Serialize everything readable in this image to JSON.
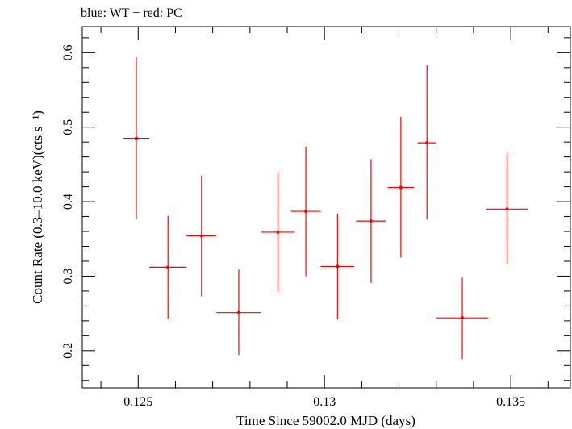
{
  "chart_data": {
    "type": "scatter",
    "title": "blue: WT − red: PC",
    "xlabel": "Time Since 59002.0 MJD (days)",
    "ylabel": "Count Rate (0.3–10.0 keV)(cts s⁻¹)",
    "xlim": [
      0.1235,
      0.1366
    ],
    "ylim": [
      0.15,
      0.635
    ],
    "x_ticks": [
      0.125,
      0.13,
      0.135
    ],
    "x_tick_labels": [
      "0.125",
      "0.13",
      "0.135"
    ],
    "y_ticks": [
      0.2,
      0.3,
      0.4,
      0.5,
      0.6
    ],
    "y_tick_labels": [
      "0.2",
      "0.3",
      "0.4",
      "0.5",
      "0.6"
    ],
    "grid": false,
    "series": [
      {
        "color": "#ff0000",
        "points": [
          {
            "x": 0.12495,
            "xerr": 0.00035,
            "y": 0.485,
            "ylo": 0.376,
            "yhi": 0.594
          },
          {
            "x": 0.1258,
            "xerr": 0.0005,
            "y": 0.312,
            "ylo": 0.243,
            "yhi": 0.381
          },
          {
            "x": 0.1267,
            "xerr": 0.0004,
            "y": 0.354,
            "ylo": 0.273,
            "yhi": 0.435
          },
          {
            "x": 0.1277,
            "xerr": 0.0006,
            "y": 0.251,
            "ylo": 0.194,
            "yhi": 0.309
          },
          {
            "x": 0.12875,
            "xerr": 0.00045,
            "y": 0.359,
            "ylo": 0.279,
            "yhi": 0.44
          },
          {
            "x": 0.1295,
            "xerr": 0.0004,
            "y": 0.387,
            "ylo": 0.3,
            "yhi": 0.474
          },
          {
            "x": 0.13035,
            "xerr": 0.00045,
            "y": 0.313,
            "ylo": 0.242,
            "yhi": 0.384
          },
          {
            "x": 0.13125,
            "xerr": 0.0004,
            "y": 0.374,
            "ylo": 0.291,
            "yhi": 0.457
          },
          {
            "x": 0.13205,
            "xerr": 0.00035,
            "y": 0.419,
            "ylo": 0.325,
            "yhi": 0.514
          },
          {
            "x": 0.13275,
            "xerr": 0.00025,
            "y": 0.479,
            "ylo": 0.376,
            "yhi": 0.583
          },
          {
            "x": 0.1337,
            "xerr": 0.0007,
            "y": 0.244,
            "ylo": 0.189,
            "yhi": 0.298
          },
          {
            "x": 0.1349,
            "xerr": 0.00055,
            "y": 0.39,
            "ylo": 0.316,
            "yhi": 0.465
          }
        ]
      }
    ]
  }
}
